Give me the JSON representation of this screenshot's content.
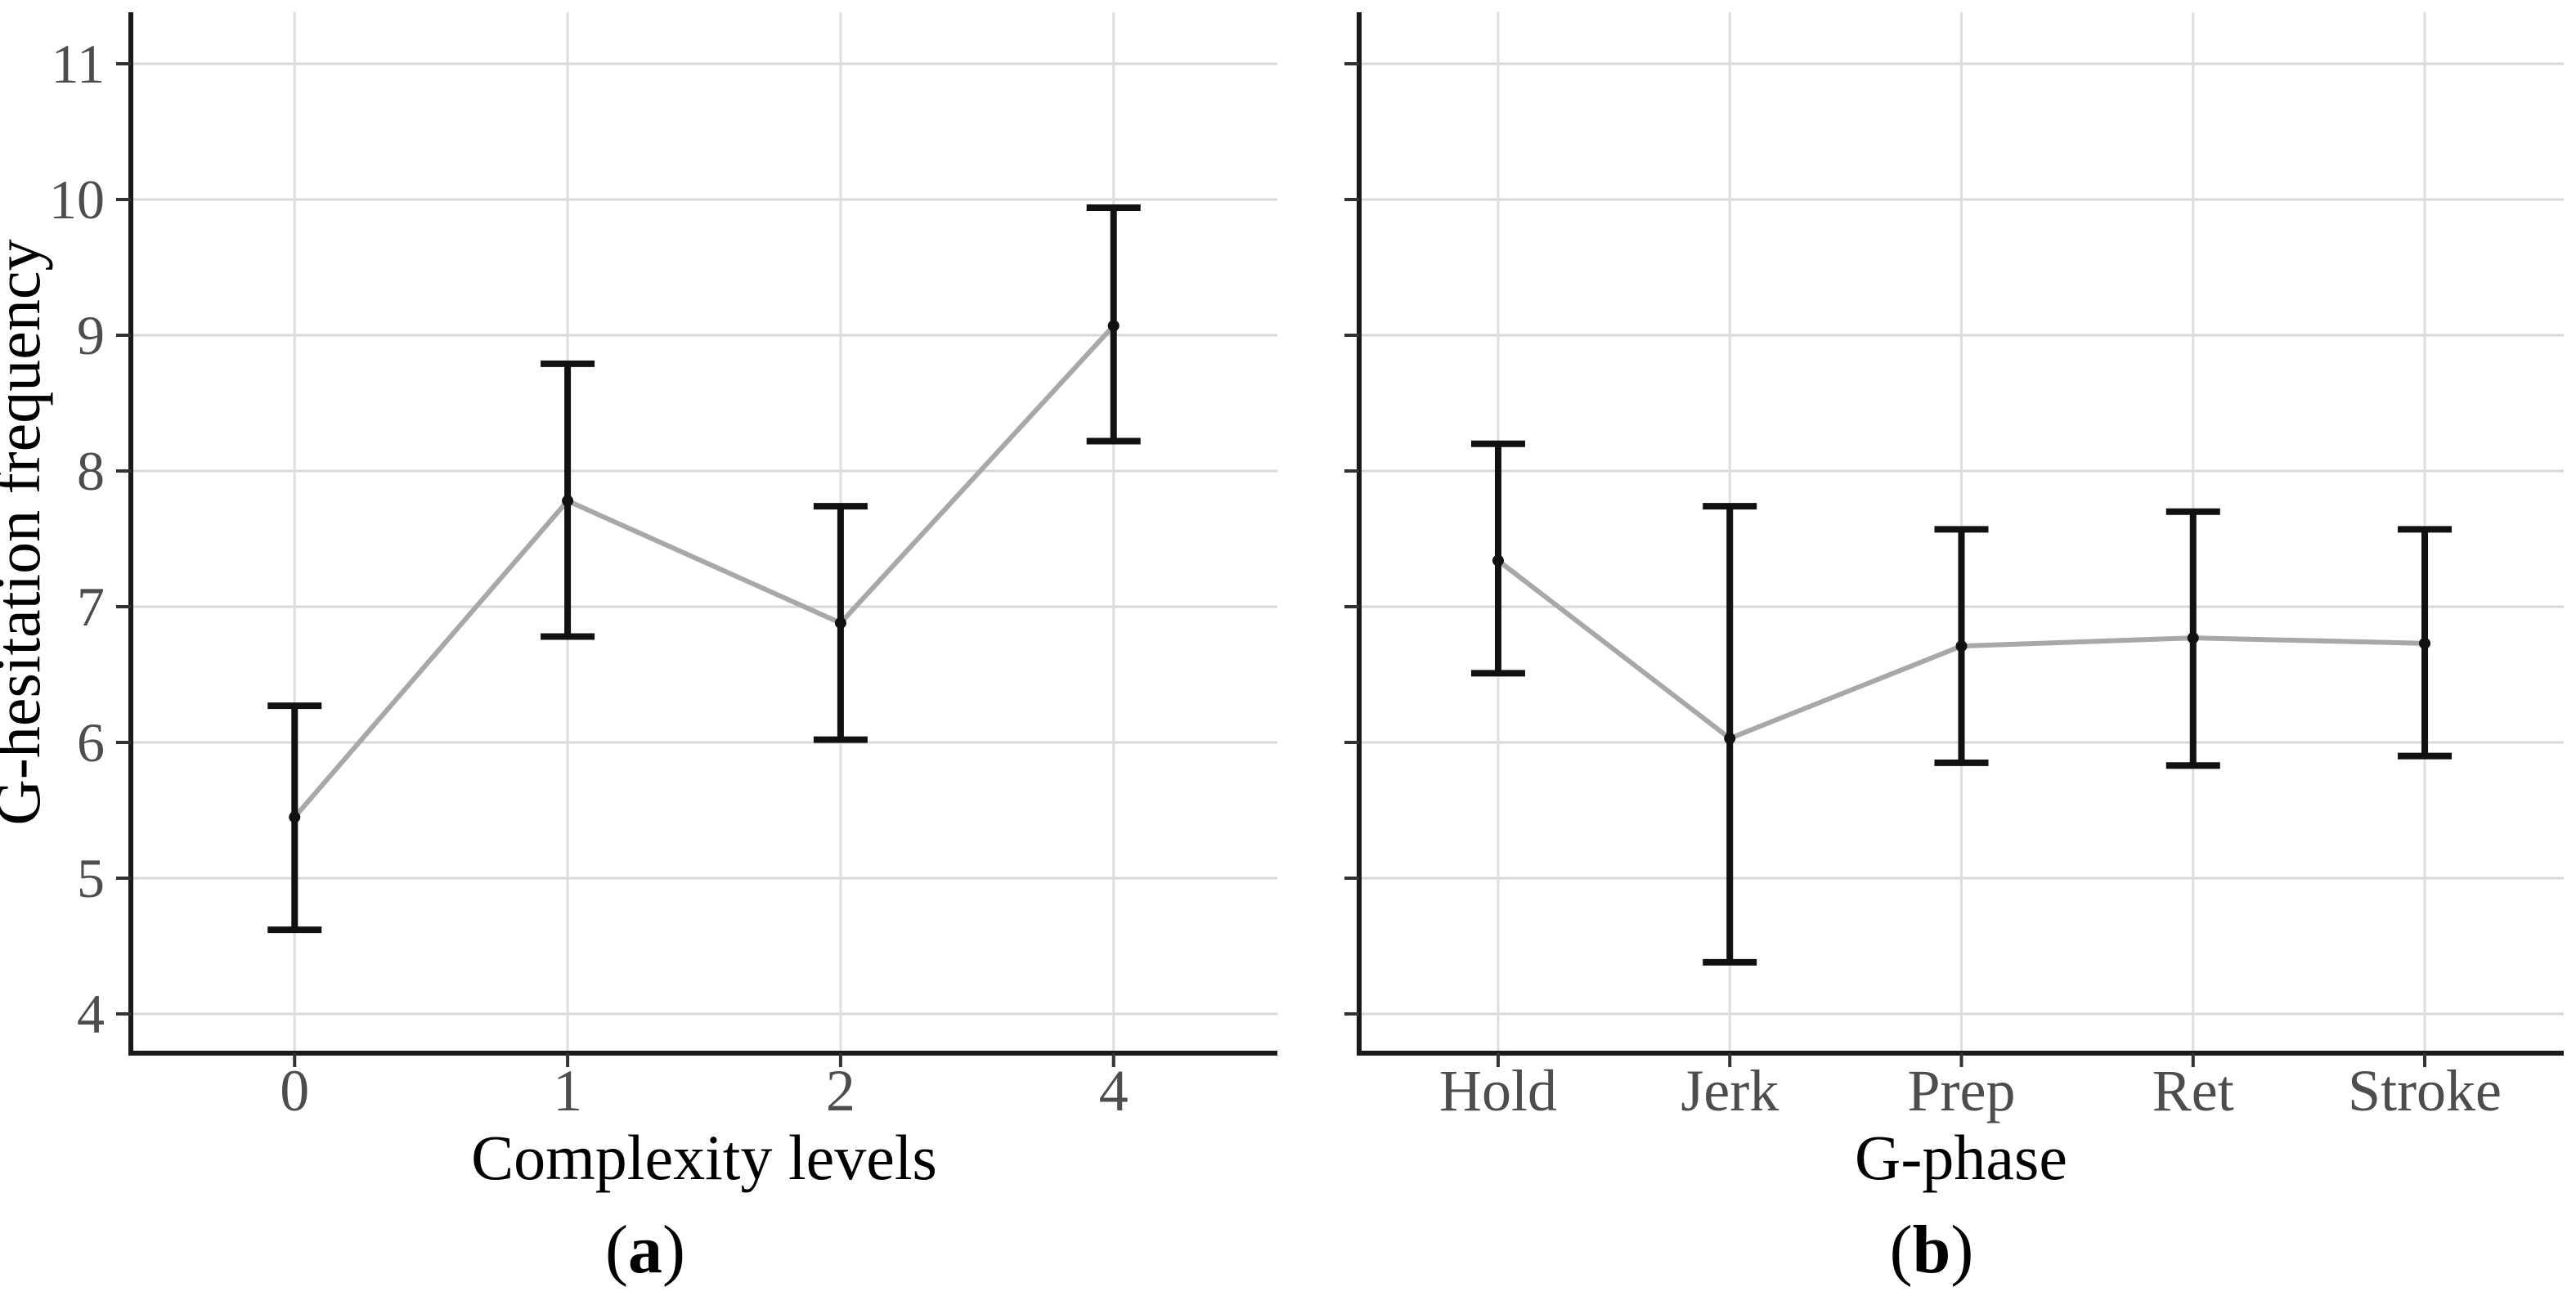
{
  "figure": {
    "caption_a_letter": "a",
    "caption_b_letter": "b",
    "paren_open": "(",
    "paren_close": ")"
  },
  "style": {
    "background": "#ffffff",
    "axis_line_color": "#1a1a1a",
    "grid_color_h": "#d8d8d8",
    "grid_color_v": "#dedede",
    "tick_color": "#333333",
    "tick_label_color": "#4d4d4d",
    "title_color": "#000000",
    "series_line_color": "#a8a8a8",
    "error_bar_color": "#111111",
    "point_color": "#111111"
  },
  "chart_data": [
    {
      "type": "line",
      "panel": "a",
      "title": "",
      "xlabel": "Complexity levels",
      "ylabel": "G-hesitation frequency",
      "categories": [
        "0",
        "1",
        "2",
        "4"
      ],
      "series": [
        {
          "name": "mean G-hesitation frequency",
          "values": [
            5.45,
            7.78,
            6.88,
            9.07
          ]
        }
      ],
      "error_low": [
        4.62,
        6.78,
        6.02,
        8.22
      ],
      "error_high": [
        6.27,
        8.79,
        7.74,
        9.94
      ],
      "y_ticks": [
        4,
        5,
        6,
        7,
        8,
        9,
        10,
        11
      ],
      "ylim": [
        3.7,
        11.4
      ],
      "grid": true,
      "legend": "none",
      "y_tick_labels_visible": true,
      "marker": "filled-circle",
      "error_bar_caps": true
    },
    {
      "type": "line",
      "panel": "b",
      "title": "",
      "xlabel": "G-phase",
      "ylabel": "",
      "categories": [
        "Hold",
        "Jerk",
        "Prep",
        "Ret",
        "Stroke"
      ],
      "series": [
        {
          "name": "mean G-hesitation frequency",
          "values": [
            7.34,
            6.03,
            6.71,
            6.77,
            6.73
          ]
        }
      ],
      "error_low": [
        6.51,
        4.38,
        5.85,
        5.83,
        5.9
      ],
      "error_high": [
        8.2,
        7.74,
        7.57,
        7.7,
        7.57
      ],
      "y_ticks": [
        4,
        5,
        6,
        7,
        8,
        9,
        10,
        11
      ],
      "ylim": [
        3.7,
        11.4
      ],
      "grid": true,
      "legend": "none",
      "y_tick_labels_visible": false,
      "marker": "filled-circle",
      "error_bar_caps": true
    }
  ]
}
